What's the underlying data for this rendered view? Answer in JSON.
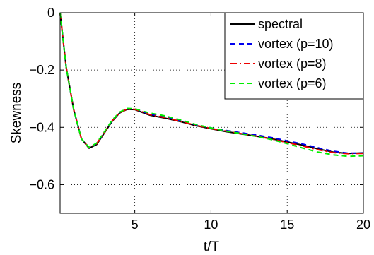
{
  "chart_data": {
    "type": "line",
    "title": "",
    "xlabel": "t/T",
    "ylabel": "Skewness",
    "xlim": [
      0.1,
      20
    ],
    "ylim": [
      -0.7,
      0
    ],
    "xticks": [
      5,
      10,
      15,
      20
    ],
    "xtick_labels": [
      "5",
      "10",
      "15",
      "20"
    ],
    "yticks": [
      -0.6,
      -0.4,
      -0.2,
      0
    ],
    "ytick_labels": [
      "−0.6",
      "−0.4",
      "−0.2",
      "0"
    ],
    "grid": true,
    "grid_style": "dotted",
    "legend_position": "top-right",
    "series": [
      {
        "name": "spectral",
        "color": "#000000",
        "dash": "solid",
        "x": [
          0.1,
          0.5,
          1.0,
          1.5,
          2.0,
          2.5,
          3.0,
          3.5,
          4.0,
          4.5,
          5.0,
          5.5,
          6.0,
          7.0,
          8.0,
          9.0,
          10.0,
          11.0,
          12.0,
          13.0,
          14.0,
          15.0,
          16.0,
          17.0,
          18.0,
          19.0,
          20.0
        ],
        "y": [
          0.0,
          -0.19,
          -0.34,
          -0.44,
          -0.473,
          -0.46,
          -0.42,
          -0.38,
          -0.35,
          -0.337,
          -0.338,
          -0.348,
          -0.358,
          -0.368,
          -0.38,
          -0.394,
          -0.405,
          -0.415,
          -0.423,
          -0.431,
          -0.44,
          -0.451,
          -0.462,
          -0.475,
          -0.486,
          -0.491,
          -0.489
        ]
      },
      {
        "name": "vortex (p=10)",
        "color": "#0000ee",
        "dash": "dashed",
        "x": [
          0.1,
          0.5,
          1.0,
          1.5,
          2.0,
          2.5,
          3.0,
          3.5,
          4.0,
          4.5,
          5.0,
          5.5,
          6.0,
          7.0,
          8.0,
          9.0,
          10.0,
          11.0,
          12.0,
          13.0,
          14.0,
          15.0,
          16.0,
          17.0,
          18.0,
          19.0,
          20.0
        ],
        "y": [
          0.0,
          -0.19,
          -0.34,
          -0.44,
          -0.47,
          -0.456,
          -0.417,
          -0.377,
          -0.348,
          -0.335,
          -0.336,
          -0.345,
          -0.354,
          -0.364,
          -0.377,
          -0.391,
          -0.402,
          -0.411,
          -0.419,
          -0.427,
          -0.436,
          -0.447,
          -0.458,
          -0.471,
          -0.483,
          -0.49,
          -0.49
        ]
      },
      {
        "name": "vortex (p=8)",
        "color": "#ee0000",
        "dash": "dashdot",
        "x": [
          0.1,
          0.5,
          1.0,
          1.5,
          2.0,
          2.5,
          3.0,
          3.5,
          4.0,
          4.5,
          5.0,
          5.5,
          6.0,
          7.0,
          8.0,
          9.0,
          10.0,
          11.0,
          12.0,
          13.0,
          14.0,
          15.0,
          16.0,
          17.0,
          18.0,
          19.0,
          20.0
        ],
        "y": [
          0.0,
          -0.19,
          -0.34,
          -0.44,
          -0.471,
          -0.457,
          -0.418,
          -0.378,
          -0.349,
          -0.336,
          -0.337,
          -0.346,
          -0.356,
          -0.366,
          -0.379,
          -0.393,
          -0.404,
          -0.413,
          -0.422,
          -0.431,
          -0.441,
          -0.453,
          -0.465,
          -0.478,
          -0.488,
          -0.492,
          -0.491
        ]
      },
      {
        "name": "vortex (p=6)",
        "color": "#00ee00",
        "dash": "dashed",
        "x": [
          0.1,
          0.5,
          1.0,
          1.5,
          2.0,
          2.5,
          3.0,
          3.5,
          4.0,
          4.5,
          5.0,
          5.5,
          6.0,
          7.0,
          8.0,
          9.0,
          10.0,
          11.0,
          12.0,
          13.0,
          14.0,
          15.0,
          16.0,
          17.0,
          18.0,
          19.0,
          20.0
        ],
        "y": [
          0.0,
          -0.19,
          -0.34,
          -0.44,
          -0.47,
          -0.455,
          -0.416,
          -0.376,
          -0.347,
          -0.334,
          -0.335,
          -0.343,
          -0.35,
          -0.36,
          -0.374,
          -0.39,
          -0.402,
          -0.413,
          -0.422,
          -0.432,
          -0.443,
          -0.457,
          -0.472,
          -0.486,
          -0.496,
          -0.501,
          -0.499
        ]
      }
    ]
  }
}
